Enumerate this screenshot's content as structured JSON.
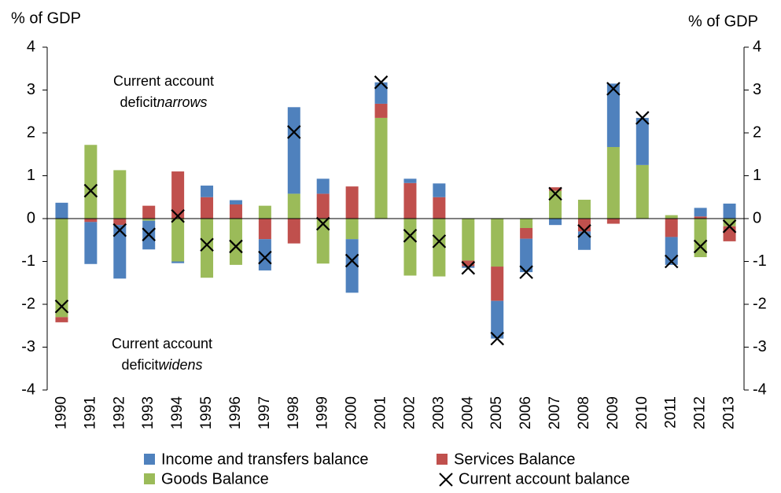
{
  "chart_data": {
    "type": "bar",
    "stacked": true,
    "ylabel": "% of GDP",
    "y2label": "% of GDP",
    "categories": [
      "1990",
      "1991",
      "1992",
      "1993",
      "1994",
      "1995",
      "1996",
      "1997",
      "1998",
      "1999",
      "2000",
      "2001",
      "2002",
      "2003",
      "2004",
      "2005",
      "2006",
      "2007",
      "2008",
      "2009",
      "2010",
      "2011",
      "2012",
      "2013"
    ],
    "series": [
      {
        "name": "Income and transfers balance",
        "color": "#4f81bd",
        "values": [
          0.37,
          -0.98,
          -1.25,
          -0.67,
          -0.04,
          0.27,
          0.1,
          -0.73,
          2.02,
          0.35,
          -1.25,
          0.5,
          0.1,
          0.32,
          -0.04,
          -0.88,
          -0.78,
          -0.15,
          -0.43,
          1.48,
          1.1,
          -0.65,
          0.2,
          0.35
        ]
      },
      {
        "name": "Services  Balance",
        "color": "#c0504d",
        "values": [
          -0.12,
          -0.08,
          -0.15,
          0.3,
          1.1,
          0.5,
          0.33,
          -0.48,
          -0.58,
          0.58,
          0.75,
          0.33,
          0.83,
          0.5,
          -0.13,
          -0.8,
          -0.25,
          0.08,
          -0.3,
          -0.12,
          0,
          -0.43,
          0.05,
          -0.35
        ]
      },
      {
        "name": "Goods Balance",
        "color": "#9bbb59",
        "values": [
          -2.3,
          1.72,
          1.13,
          -0.05,
          -1.0,
          -1.38,
          -1.08,
          0.3,
          0.58,
          -1.05,
          -0.48,
          2.35,
          -1.33,
          -1.35,
          -0.98,
          -1.12,
          -0.22,
          0.65,
          0.44,
          1.67,
          1.25,
          0.08,
          -0.9,
          -0.18
        ]
      },
      {
        "name": "Current account balance",
        "color": "#000000",
        "marker": "x",
        "values": [
          -2.05,
          0.65,
          -0.27,
          -0.37,
          0.06,
          -0.61,
          -0.65,
          -0.91,
          2.02,
          -0.12,
          -0.98,
          3.18,
          -0.4,
          -0.53,
          -1.15,
          -2.8,
          -1.25,
          0.58,
          -0.29,
          3.03,
          2.35,
          -1.0,
          -0.65,
          -0.18
        ]
      }
    ],
    "ylim": [
      -4,
      4
    ],
    "yticks": [
      -4,
      -3,
      -2,
      -1,
      0,
      1,
      2,
      3,
      4
    ],
    "y2lim": [
      -4,
      4
    ],
    "y2ticks": [
      -4,
      -3,
      -2,
      -1,
      0,
      1,
      2,
      3,
      4
    ],
    "annotations": [
      {
        "lines": [
          "Current account",
          "deficit"
        ],
        "italic": "narrows"
      },
      {
        "lines": [
          "Current account",
          "deficit"
        ],
        "italic": "widens"
      }
    ]
  }
}
